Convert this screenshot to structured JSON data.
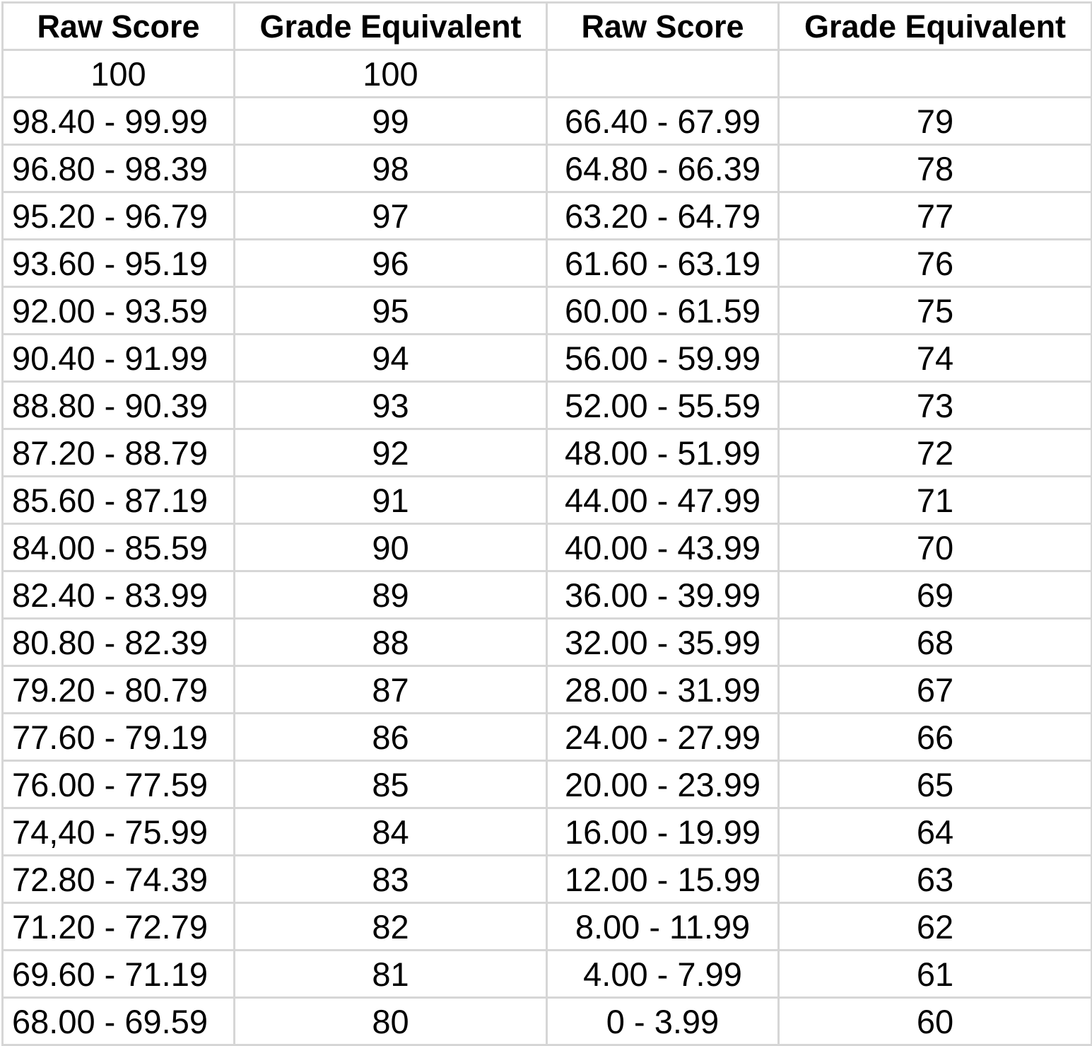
{
  "table": {
    "headers": [
      "Raw Score",
      "Grade Equivalent",
      "Raw Score",
      "Grade Equivalent"
    ],
    "rows": [
      [
        "100",
        "100",
        "",
        ""
      ],
      [
        "98.40 - 99.99",
        "99",
        "66.40 - 67.99",
        "79"
      ],
      [
        "96.80 - 98.39",
        "98",
        "64.80 - 66.39",
        "78"
      ],
      [
        "95.20 - 96.79",
        "97",
        "63.20 - 64.79",
        "77"
      ],
      [
        "93.60 - 95.19",
        "96",
        "61.60 - 63.19",
        "76"
      ],
      [
        "92.00 - 93.59",
        "95",
        "60.00 - 61.59",
        "75"
      ],
      [
        "90.40 - 91.99",
        "94",
        "56.00 - 59.99",
        "74"
      ],
      [
        "88.80 - 90.39",
        "93",
        "52.00 - 55.59",
        "73"
      ],
      [
        "87.20 - 88.79",
        "92",
        "48.00 - 51.99",
        "72"
      ],
      [
        "85.60 - 87.19",
        "91",
        "44.00 - 47.99",
        "71"
      ],
      [
        "84.00 - 85.59",
        "90",
        "40.00 - 43.99",
        "70"
      ],
      [
        "82.40 - 83.99",
        "89",
        "36.00 - 39.99",
        "69"
      ],
      [
        "80.80 - 82.39",
        "88",
        "32.00 - 35.99",
        "68"
      ],
      [
        "79.20 - 80.79",
        "87",
        "28.00 - 31.99",
        "67"
      ],
      [
        "77.60 - 79.19",
        "86",
        "24.00 - 27.99",
        "66"
      ],
      [
        "76.00 - 77.59",
        "85",
        "20.00 - 23.99",
        "65"
      ],
      [
        "74,40 - 75.99",
        "84",
        "16.00 - 19.99",
        "64"
      ],
      [
        "72.80 - 74.39",
        "83",
        "12.00 - 15.99",
        "63"
      ],
      [
        "71.20 - 72.79",
        "82",
        "8.00 - 11.99",
        "62"
      ],
      [
        "69.60 - 71.19",
        "81",
        "4.00 - 7.99",
        "61"
      ],
      [
        "68.00 - 69.59",
        "80",
        "0 - 3.99",
        "60"
      ]
    ]
  }
}
